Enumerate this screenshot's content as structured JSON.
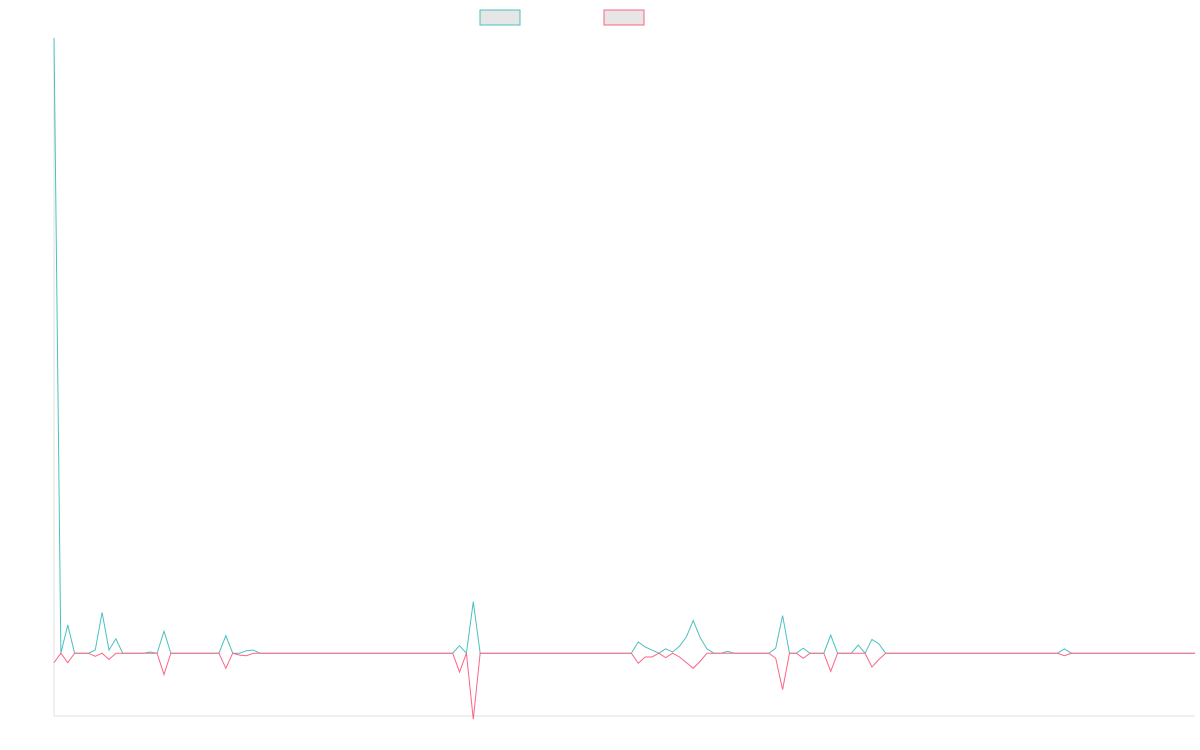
{
  "chart_data": {
    "type": "line",
    "title": "",
    "xlabel": "",
    "ylabel": "",
    "grid": false,
    "legend_position": "top-center",
    "xlim": [
      0,
      166
    ],
    "ylim": [
      -10,
      98
    ],
    "x": [
      0,
      1,
      2,
      3,
      4,
      5,
      6,
      7,
      8,
      9,
      10,
      11,
      12,
      13,
      14,
      15,
      16,
      17,
      18,
      19,
      20,
      21,
      22,
      23,
      24,
      25,
      26,
      27,
      28,
      29,
      30,
      31,
      32,
      33,
      34,
      35,
      36,
      37,
      38,
      39,
      40,
      41,
      42,
      43,
      44,
      45,
      46,
      47,
      48,
      49,
      50,
      51,
      52,
      53,
      54,
      55,
      56,
      57,
      58,
      59,
      60,
      61,
      62,
      63,
      64,
      65,
      66,
      67,
      68,
      69,
      70,
      71,
      72,
      73,
      74,
      75,
      76,
      77,
      78,
      79,
      80,
      81,
      82,
      83,
      84,
      85,
      86,
      87,
      88,
      89,
      90,
      91,
      92,
      93,
      94,
      95,
      96,
      97,
      98,
      99,
      100,
      101,
      102,
      103,
      104,
      105,
      106,
      107,
      108,
      109,
      110,
      111,
      112,
      113,
      114,
      115,
      116,
      117,
      118,
      119,
      120,
      121,
      122,
      123,
      124,
      125,
      126,
      127,
      128,
      129,
      130,
      131,
      132,
      133,
      134,
      135,
      136,
      137,
      138,
      139,
      140,
      141,
      142,
      143,
      144,
      145,
      146,
      147,
      148,
      149,
      150,
      151,
      152,
      153,
      154,
      155,
      156,
      157,
      158,
      159,
      160,
      161,
      162,
      163,
      164,
      165,
      166
    ],
    "series": [
      {
        "color": "#4bc0c0",
        "values": [
          98,
          0,
          4.5,
          0,
          0,
          0,
          0.5,
          6.5,
          0.5,
          2.3,
          0,
          0,
          0,
          0,
          0.2,
          0,
          3.5,
          0,
          0,
          0,
          0,
          0,
          0,
          0,
          0,
          2.8,
          0,
          0,
          0.4,
          0.5,
          0,
          0,
          0,
          0,
          0,
          0,
          0,
          0,
          0,
          0,
          0,
          0,
          0,
          0,
          0,
          0,
          0,
          0,
          0,
          0,
          0,
          0,
          0,
          0,
          0,
          0,
          0,
          0,
          0,
          1.2,
          0,
          8.2,
          0,
          0,
          0,
          0,
          0,
          0,
          0,
          0,
          0,
          0,
          0,
          0,
          0,
          0,
          0,
          0,
          0,
          0,
          0,
          0,
          0,
          0,
          0,
          1.8,
          1,
          0.5,
          0,
          0.7,
          0.2,
          1.1,
          2.6,
          5.2,
          2.5,
          0.7,
          0,
          0,
          0.3,
          0,
          0,
          0,
          0,
          0,
          0,
          0.8,
          6,
          0,
          0,
          0.8,
          0,
          0,
          0,
          2.9,
          0,
          0,
          0,
          1.3,
          0,
          2.2,
          1.5,
          0,
          0,
          0,
          0,
          0,
          0,
          0,
          0,
          0,
          0,
          0,
          0,
          0,
          0,
          0,
          0,
          0,
          0,
          0,
          0,
          0,
          0,
          0,
          0,
          0,
          0,
          0.7,
          0,
          0,
          0,
          0,
          0,
          0,
          0,
          0,
          0,
          0,
          0,
          0,
          0,
          0,
          0,
          0,
          0,
          0,
          0
        ]
      },
      {
        "color": "#ff6384",
        "values": [
          -1.5,
          0,
          -1.5,
          0,
          0,
          0,
          -0.5,
          0,
          -1,
          0,
          0,
          0,
          0,
          0,
          0,
          0,
          -3.4,
          0,
          0,
          0,
          0,
          0,
          0,
          0,
          0,
          -2.4,
          0,
          -0.3,
          -0.4,
          0,
          0,
          0,
          0,
          0,
          0,
          0,
          0,
          0,
          0,
          0,
          0,
          0,
          0,
          0,
          0,
          0,
          0,
          0,
          0,
          0,
          0,
          0,
          0,
          0,
          0,
          0,
          0,
          0,
          0,
          -3,
          0,
          -10.5,
          0,
          0,
          0,
          0,
          0,
          0,
          0,
          0,
          0,
          0,
          0,
          0,
          0,
          0,
          0,
          0,
          0,
          0,
          0,
          0,
          0,
          0,
          0,
          -1.6,
          -0.6,
          -0.6,
          0,
          -0.7,
          0,
          -0.6,
          -1.5,
          -2.4,
          -1.3,
          0,
          0,
          0,
          0,
          0,
          0,
          0,
          0,
          0,
          0,
          -0.8,
          -5.8,
          0,
          0,
          -0.8,
          0,
          0,
          0,
          -2.9,
          0,
          0,
          0,
          0,
          0,
          -2.2,
          -1,
          0,
          0,
          0,
          0,
          0,
          0,
          0,
          0,
          0,
          0,
          0,
          0,
          0,
          0,
          0,
          0,
          0,
          0,
          0,
          0,
          0,
          0,
          0,
          0,
          0,
          0,
          -0.4,
          0,
          0,
          0,
          0,
          0,
          0,
          0,
          0,
          0,
          0,
          0,
          0,
          0,
          0,
          0,
          0,
          0,
          0,
          0
        ]
      }
    ]
  }
}
